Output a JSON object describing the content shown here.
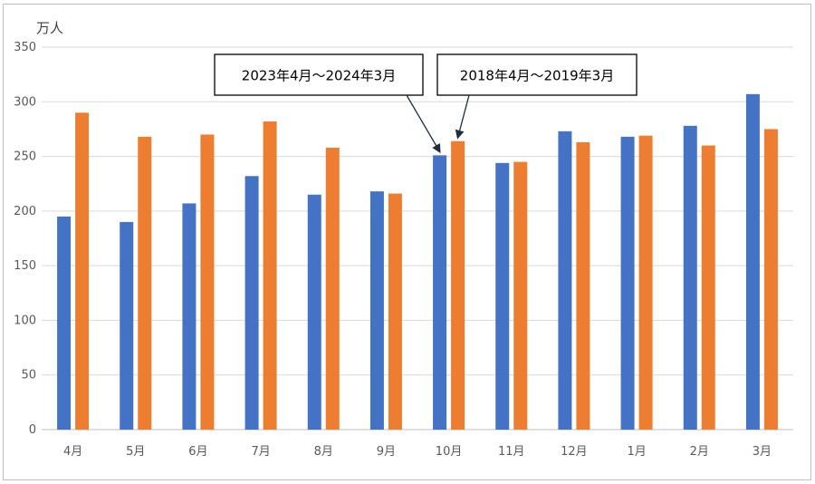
{
  "chart_data": {
    "type": "bar",
    "ylabel": "万人",
    "ylim": [
      0,
      350
    ],
    "yticks": [
      0,
      50,
      100,
      150,
      200,
      250,
      300,
      350
    ],
    "grid": true,
    "categories": [
      "4月",
      "5月",
      "6月",
      "7月",
      "8月",
      "9月",
      "10月",
      "11月",
      "12月",
      "1月",
      "2月",
      "3月"
    ],
    "series": [
      {
        "name": "2023年4月～2024年3月",
        "color": "#4472C4",
        "values": [
          195,
          190,
          207,
          232,
          215,
          218,
          251,
          244,
          273,
          268,
          278,
          307
        ]
      },
      {
        "name": "2018年4月～2019年3月",
        "color": "#ED7D31",
        "values": [
          290,
          268,
          270,
          282,
          258,
          216,
          264,
          245,
          263,
          269,
          260,
          275
        ]
      }
    ]
  }
}
